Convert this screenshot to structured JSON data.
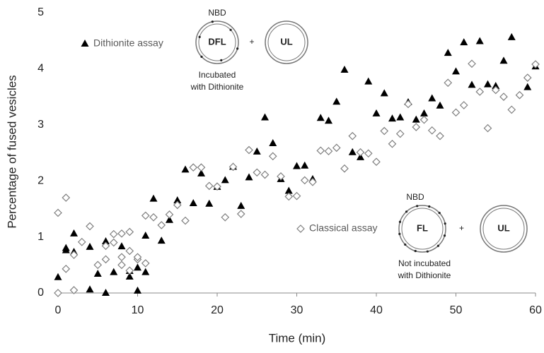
{
  "chart_data": {
    "type": "scatter",
    "xlabel": "Time (min)",
    "ylabel": "Percentage of fused vesicles",
    "xlim": [
      0,
      60
    ],
    "xticks": [
      0,
      10,
      20,
      30,
      40,
      50,
      60
    ],
    "ylim": [
      0,
      5
    ],
    "yticks": [
      0,
      1,
      2,
      3,
      4,
      5
    ],
    "series": [
      {
        "name": "Dithionite assay",
        "color": "#000000",
        "marker": "triangle",
        "x": [
          0,
          1,
          1,
          2,
          2,
          4,
          4,
          5,
          6,
          6,
          7,
          8,
          9,
          9,
          10,
          10,
          11,
          11,
          12,
          13,
          14,
          15,
          16,
          17,
          18,
          19,
          20,
          21,
          22,
          23,
          24,
          25,
          26,
          27,
          28,
          29,
          30,
          31,
          32,
          33,
          34,
          35,
          36,
          37,
          38,
          39,
          40,
          41,
          42,
          43,
          44,
          45,
          46,
          47,
          48,
          49,
          50,
          51,
          52,
          53,
          54,
          55,
          56,
          57,
          59,
          60
        ],
        "values": [
          0.28,
          0.76,
          0.8,
          1.06,
          0.73,
          0.82,
          0.06,
          0.34,
          0.92,
          0.0,
          0.37,
          0.83,
          0.39,
          0.29,
          0.45,
          0.04,
          0.37,
          1.02,
          1.68,
          0.93,
          1.3,
          1.65,
          2.2,
          1.6,
          2.13,
          1.59,
          1.89,
          2.01,
          2.25,
          1.55,
          2.06,
          2.52,
          3.13,
          2.67,
          2.03,
          1.82,
          2.26,
          2.27,
          2.03,
          3.12,
          3.07,
          3.41,
          3.98,
          2.51,
          2.42,
          3.77,
          3.2,
          3.56,
          3.11,
          3.13,
          3.4,
          3.09,
          3.2,
          3.47,
          3.34,
          4.28,
          3.95,
          4.47,
          3.71,
          4.49,
          3.72,
          3.69,
          4.14,
          4.56,
          3.67,
          4.04
        ]
      },
      {
        "name": "Classical assay",
        "color": "#808080",
        "marker": "diamond",
        "x": [
          0,
          0,
          1,
          1,
          2,
          2,
          3,
          4,
          5,
          6,
          6,
          7,
          7,
          8,
          8,
          8,
          9,
          9,
          9,
          10,
          10,
          11,
          11,
          12,
          13,
          14,
          15,
          16,
          17,
          18,
          19,
          20,
          21,
          22,
          23,
          24,
          25,
          26,
          27,
          28,
          29,
          30,
          31,
          32,
          33,
          34,
          35,
          36,
          37,
          38,
          39,
          40,
          41,
          42,
          43,
          44,
          45,
          46,
          47,
          48,
          49,
          50,
          51,
          52,
          53,
          54,
          55,
          56,
          57,
          58,
          59,
          60
        ],
        "values": [
          1.43,
          0.0,
          1.7,
          0.43,
          0.68,
          0.05,
          0.91,
          1.19,
          0.5,
          0.84,
          0.6,
          1.05,
          0.9,
          1.06,
          0.5,
          0.64,
          1.09,
          0.75,
          0.4,
          0.6,
          0.64,
          0.53,
          1.38,
          1.35,
          1.21,
          1.4,
          1.57,
          1.29,
          2.24,
          2.24,
          1.91,
          1.9,
          1.35,
          2.25,
          1.41,
          2.55,
          2.15,
          2.11,
          2.44,
          2.08,
          1.72,
          1.73,
          2.01,
          1.98,
          2.54,
          2.53,
          2.59,
          2.22,
          2.8,
          2.51,
          2.49,
          2.34,
          2.89,
          2.66,
          2.84,
          3.37,
          2.96,
          3.09,
          2.9,
          2.8,
          3.75,
          3.22,
          3.35,
          4.09,
          3.59,
          2.94,
          3.62,
          3.5,
          3.27,
          3.53,
          3.84,
          4.08
        ]
      }
    ],
    "diagrams": [
      {
        "dye": "NBD",
        "vesicle": "DFL",
        "plus": "+",
        "partner": "UL",
        "note": [
          "Incubated",
          "with Dithionite"
        ]
      },
      {
        "dye": "NBD",
        "vesicle": "FL",
        "plus": "+",
        "partner": "UL",
        "note": [
          "Not incubated",
          "with Dithionite"
        ]
      }
    ]
  }
}
